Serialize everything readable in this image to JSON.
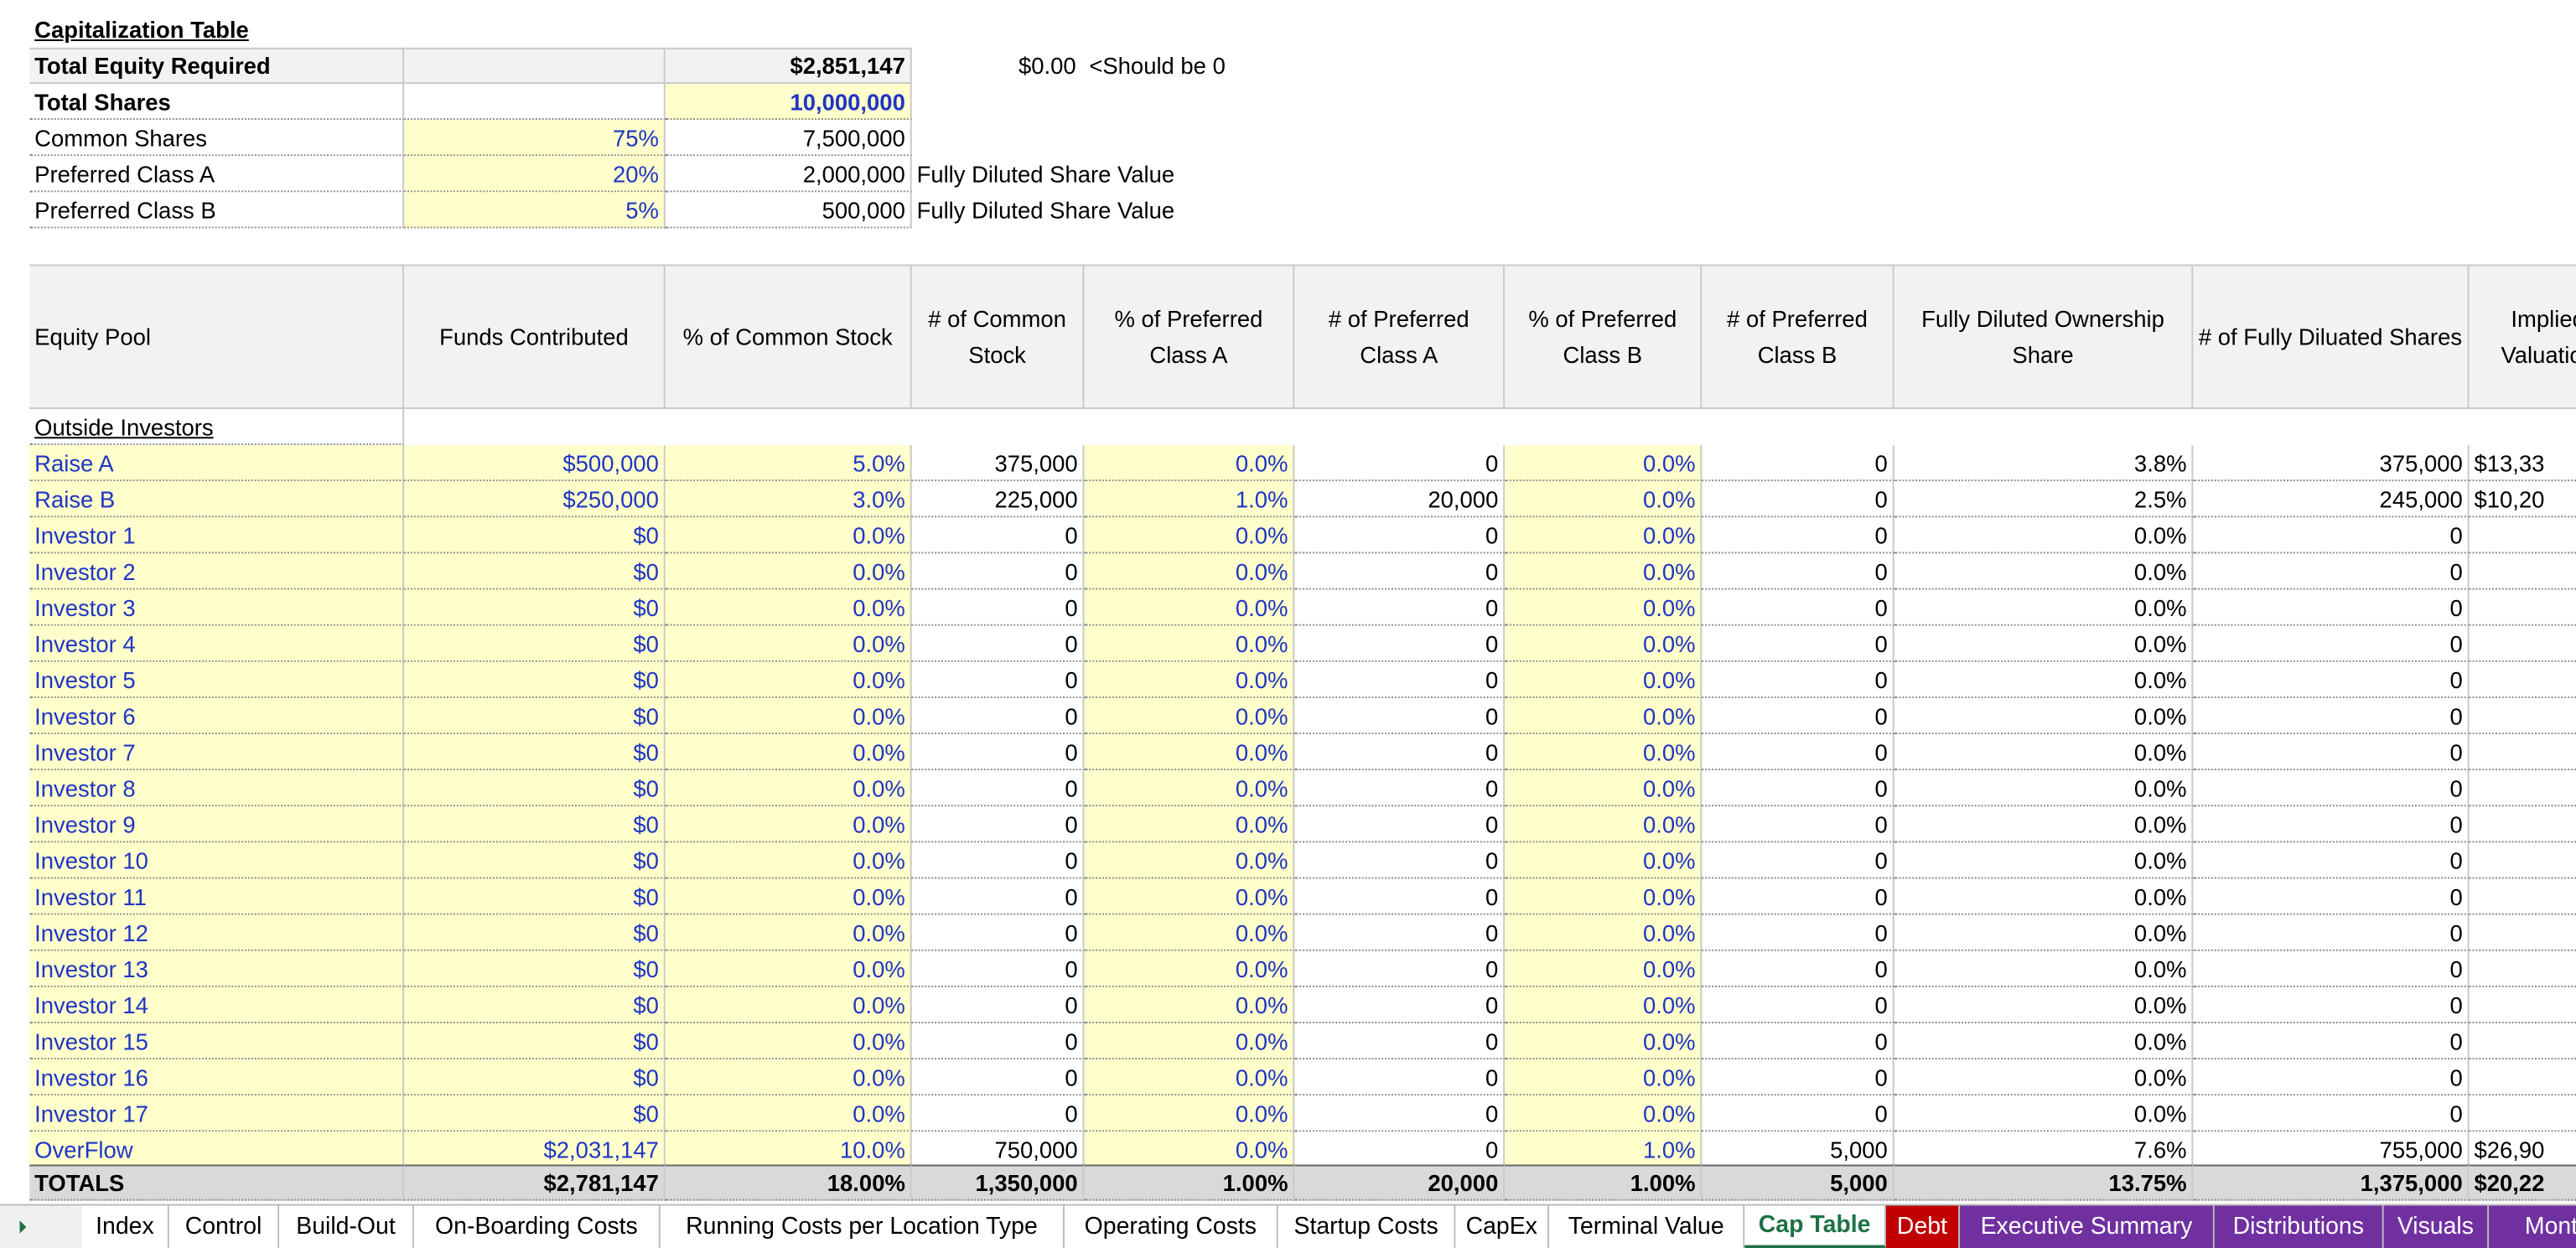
{
  "sheet": {
    "title": "Capitalization Table",
    "total_equity_label": "Total Equity Required",
    "total_equity_value": "$2,851,147",
    "check_value": "$0.00",
    "check_note": "<Should be 0",
    "total_shares_label": "Total Shares",
    "total_shares_value": "10,000,000",
    "share_classes": [
      [
        "Common Shares",
        "75%",
        "7,500,000"
      ],
      [
        "Preferred Class A",
        "20%",
        "2,000,000",
        "Fully Diluted Share Value"
      ],
      [
        "Preferred Class B",
        "5%",
        "500,000",
        "Fully Diluted Share Value"
      ]
    ]
  },
  "table": {
    "headers": [
      "Equity Pool",
      "Funds Contributed",
      "% of Common Stock",
      "# of Common Stock",
      "% of Preferred Class A",
      "# of Preferred Class A",
      "% of Preferred Class B",
      "# of Preferred Class B",
      "Fully Diluted Ownership Share",
      "# of Fully Diluated Shares",
      "Implied Valuation"
    ],
    "section": "Outside Investors",
    "rows": [
      [
        "Raise A",
        "$500,000",
        "5.0%",
        "375,000",
        "0.0%",
        "0",
        "0.0%",
        "0",
        "3.8%",
        "375,000",
        "$13,33"
      ],
      [
        "Raise B",
        "$250,000",
        "3.0%",
        "225,000",
        "1.0%",
        "20,000",
        "0.0%",
        "0",
        "2.5%",
        "245,000",
        "$10,20"
      ],
      [
        "Investor 1",
        "$0",
        "0.0%",
        "0",
        "0.0%",
        "0",
        "0.0%",
        "0",
        "0.0%",
        "0"
      ],
      [
        "Investor 2",
        "$0",
        "0.0%",
        "0",
        "0.0%",
        "0",
        "0.0%",
        "0",
        "0.0%",
        "0"
      ],
      [
        "Investor 3",
        "$0",
        "0.0%",
        "0",
        "0.0%",
        "0",
        "0.0%",
        "0",
        "0.0%",
        "0"
      ],
      [
        "Investor 4",
        "$0",
        "0.0%",
        "0",
        "0.0%",
        "0",
        "0.0%",
        "0",
        "0.0%",
        "0"
      ],
      [
        "Investor 5",
        "$0",
        "0.0%",
        "0",
        "0.0%",
        "0",
        "0.0%",
        "0",
        "0.0%",
        "0"
      ],
      [
        "Investor 6",
        "$0",
        "0.0%",
        "0",
        "0.0%",
        "0",
        "0.0%",
        "0",
        "0.0%",
        "0"
      ],
      [
        "Investor 7",
        "$0",
        "0.0%",
        "0",
        "0.0%",
        "0",
        "0.0%",
        "0",
        "0.0%",
        "0"
      ],
      [
        "Investor 8",
        "$0",
        "0.0%",
        "0",
        "0.0%",
        "0",
        "0.0%",
        "0",
        "0.0%",
        "0"
      ],
      [
        "Investor 9",
        "$0",
        "0.0%",
        "0",
        "0.0%",
        "0",
        "0.0%",
        "0",
        "0.0%",
        "0"
      ],
      [
        "Investor 10",
        "$0",
        "0.0%",
        "0",
        "0.0%",
        "0",
        "0.0%",
        "0",
        "0.0%",
        "0"
      ],
      [
        "Investor 11",
        "$0",
        "0.0%",
        "0",
        "0.0%",
        "0",
        "0.0%",
        "0",
        "0.0%",
        "0"
      ],
      [
        "Investor 12",
        "$0",
        "0.0%",
        "0",
        "0.0%",
        "0",
        "0.0%",
        "0",
        "0.0%",
        "0"
      ],
      [
        "Investor 13",
        "$0",
        "0.0%",
        "0",
        "0.0%",
        "0",
        "0.0%",
        "0",
        "0.0%",
        "0"
      ],
      [
        "Investor 14",
        "$0",
        "0.0%",
        "0",
        "0.0%",
        "0",
        "0.0%",
        "0",
        "0.0%",
        "0"
      ],
      [
        "Investor 15",
        "$0",
        "0.0%",
        "0",
        "0.0%",
        "0",
        "0.0%",
        "0",
        "0.0%",
        "0"
      ],
      [
        "Investor 16",
        "$0",
        "0.0%",
        "0",
        "0.0%",
        "0",
        "0.0%",
        "0",
        "0.0%",
        "0"
      ],
      [
        "Investor 17",
        "$0",
        "0.0%",
        "0",
        "0.0%",
        "0",
        "0.0%",
        "0",
        "0.0%",
        "0"
      ],
      [
        "OverFlow",
        "$2,031,147",
        "10.0%",
        "750,000",
        "0.0%",
        "0",
        "1.0%",
        "5,000",
        "7.6%",
        "755,000",
        "$26,90"
      ]
    ],
    "totals": [
      "TOTALS",
      "$2,781,147",
      "18.00%",
      "1,350,000",
      "1.00%",
      "20,000",
      "1.00%",
      "5,000",
      "13.75%",
      "1,375,000",
      "$20,22"
    ]
  },
  "tabs": [
    {
      "label": "Index"
    },
    {
      "label": "Control"
    },
    {
      "label": "Build-Out"
    },
    {
      "label": "On-Boarding Costs"
    },
    {
      "label": "Running Costs per Location Type"
    },
    {
      "label": "Operating Costs"
    },
    {
      "label": "Startup Costs"
    },
    {
      "label": "CapEx"
    },
    {
      "label": "Terminal Value"
    },
    {
      "label": "Cap Table",
      "color": "#1e7145"
    },
    {
      "label": "Debt",
      "color": "#c00000"
    },
    {
      "label": "Executive Summary",
      "color": "#7030a0"
    },
    {
      "label": "Distributions",
      "color": "#7030a0"
    },
    {
      "label": "Visuals",
      "color": "#7030a0"
    },
    {
      "label": "Month",
      "color": "#7030a0"
    }
  ],
  "active_tab": 9
}
